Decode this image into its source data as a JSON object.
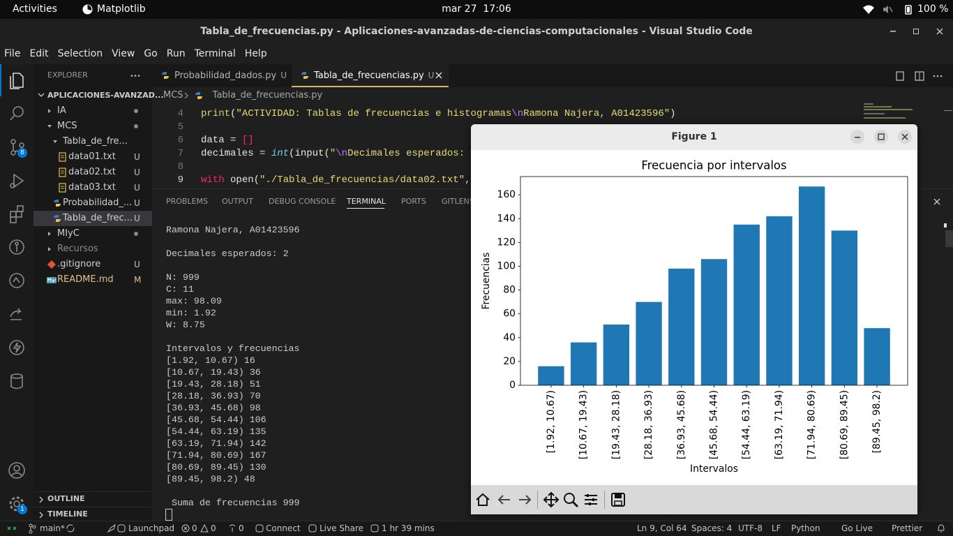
{
  "system_bar": {
    "activities": "Activities",
    "app": "Matplotlib",
    "clock": "mar 27  17:06",
    "battery": "100 %"
  },
  "window": {
    "title": "Tabla_de_frecuencias.py - Aplicaciones-avanzadas-de-ciencias-computacionales - Visual Studio Code",
    "menu": [
      "File",
      "Edit",
      "Selection",
      "View",
      "Go",
      "Run",
      "Terminal",
      "Help"
    ]
  },
  "activity_bar": {
    "scm_badge": "8",
    "settings_badge": "1"
  },
  "explorer": {
    "title": "EXPLORER",
    "root": "APLICACIONES-AVANZAD...",
    "items": [
      {
        "label": "IA",
        "kind": "folder",
        "dot": true
      },
      {
        "label": "MCS",
        "kind": "folder",
        "open": true,
        "dot": true,
        "children": [
          {
            "label": "Tabla_de_fre...",
            "kind": "folder",
            "open": true,
            "children": [
              {
                "label": "data01.txt",
                "kind": "text",
                "status": "U"
              },
              {
                "label": "data02.txt",
                "kind": "text",
                "status": "U"
              },
              {
                "label": "data03.txt",
                "kind": "text",
                "status": "U"
              }
            ]
          },
          {
            "label": "Probabilidad_...",
            "kind": "python",
            "status": "U"
          },
          {
            "label": "Tabla_de_frec...",
            "kind": "python",
            "status": "U",
            "selected": true
          }
        ]
      },
      {
        "label": "MIyC",
        "kind": "folder",
        "dot": true
      },
      {
        "label": "Recursos",
        "kind": "folder",
        "ignored": true
      },
      {
        "label": ".gitignore",
        "kind": "git",
        "status": "U"
      },
      {
        "label": "README.md",
        "kind": "markdown",
        "status": "M"
      }
    ],
    "sections": [
      "OUTLINE",
      "TIMELINE"
    ]
  },
  "editor": {
    "tabs": [
      {
        "label": "Probabilidad_dados.py",
        "status": "U"
      },
      {
        "label": "Tabla_de_frecuencias.py",
        "status": "U",
        "active": true
      }
    ],
    "breadcrumb": [
      "MCS",
      "Tabla_de_frecuencias.py"
    ],
    "lines": [
      {
        "number": "4",
        "tokens": [
          {
            "text": "print",
            "color": "#d9cf76"
          },
          {
            "text": "(",
            "color": "#e8e8e2"
          },
          {
            "text": "\"ACTIVIDAD: Tablas de frecuencias e histogramas",
            "color": "#e6db74"
          },
          {
            "text": "\\n",
            "color": "#ae81ff"
          },
          {
            "text": "Ramona Najera, A01423596\"",
            "color": "#e6db74"
          },
          {
            "text": ")",
            "color": "#e8e8e2"
          }
        ]
      },
      {
        "number": "5"
      },
      {
        "number": "6",
        "tokens": [
          {
            "text": "data = ",
            "color": "#e8e8e2"
          },
          {
            "text": "[]",
            "color": "#f92672"
          }
        ]
      },
      {
        "number": "7",
        "tokens": [
          {
            "text": "decimales = ",
            "color": "#e8e8e2"
          },
          {
            "text": "int",
            "color": "#66d9ef",
            "italic": true
          },
          {
            "text": "(input(",
            "color": "#e8e8e2"
          },
          {
            "text": "\"",
            "color": "#e6db74"
          },
          {
            "text": "\\n",
            "color": "#ae81ff"
          },
          {
            "text": "Decimales esperados: ",
            "color": "#e6db74"
          }
        ]
      },
      {
        "number": "8"
      },
      {
        "number": "9",
        "current": true,
        "tokens": [
          {
            "text": "with",
            "color": "#f92672"
          },
          {
            "text": " open(",
            "color": "#e8e8e2"
          },
          {
            "text": "\"./Tabla_de_frecuencias/data02.txt\"",
            "color": "#e6db74"
          },
          {
            "text": ",",
            "color": "#e8e8e2"
          }
        ]
      }
    ]
  },
  "panel": {
    "tabs": [
      "PROBLEMS",
      "OUTPUT",
      "DEBUG CONSOLE",
      "TERMINAL",
      "PORTS",
      "GITLENS"
    ],
    "active_tab": 3
  },
  "terminal": {
    "blocks": [
      [
        "Ramona Najera, A01423596"
      ],
      [
        "Decimales esperados: 2"
      ],
      [
        "N: 999",
        "C: 11",
        "max: 98.09",
        "min: 1.92",
        "W: 8.75"
      ],
      [
        "Intervalos y frecuencias",
        "[1.92, 10.67) 16",
        "[10.67, 19.43) 36",
        "[19.43, 28.18) 51",
        "[28.18, 36.93) 70",
        "[36.93, 45.68) 98",
        "[45.68, 54.44) 106",
        "[54.44, 63.19) 135",
        "[63.19, 71.94) 142",
        "[71.94, 80.69) 167",
        "[80.69, 89.45) 130",
        "[89.45, 98.2) 48"
      ],
      [
        " Suma de frecuencias 999"
      ]
    ]
  },
  "figure": {
    "title": "Figure 1"
  },
  "chart_data": {
    "type": "bar",
    "title": "Frecuencia por intervalos",
    "xlabel": "Intervalos",
    "ylabel": "Frecuencias",
    "categories": [
      "[1.92, 10.67)",
      "[10.67, 19.43)",
      "[19.43, 28.18)",
      "[28.18, 36.93)",
      "[36.93, 45.68)",
      "[45.68, 54.44)",
      "[54.44, 63.19)",
      "[63.19, 71.94)",
      "[71.94, 80.69)",
      "[80.69, 89.45)",
      "[89.45, 98.2)"
    ],
    "values": [
      16,
      36,
      51,
      70,
      98,
      106,
      135,
      142,
      167,
      130,
      48
    ],
    "color": "#1f77b4",
    "ylim": [
      0,
      175.35
    ],
    "yticks": [
      0,
      20,
      40,
      60,
      80,
      100,
      120,
      140,
      160
    ],
    "grid": false
  },
  "status_bar": {
    "branch": "main*",
    "errors": "0",
    "warnings": "0",
    "ports": "0",
    "left": [
      "Launchpad",
      "Connect",
      "Live Share",
      "1 hr 39 mins"
    ],
    "right": [
      "Ln 9, Col 64",
      "Spaces: 4",
      "UTF-8",
      "LF",
      "Python",
      "Go Live",
      "Prettier"
    ]
  }
}
